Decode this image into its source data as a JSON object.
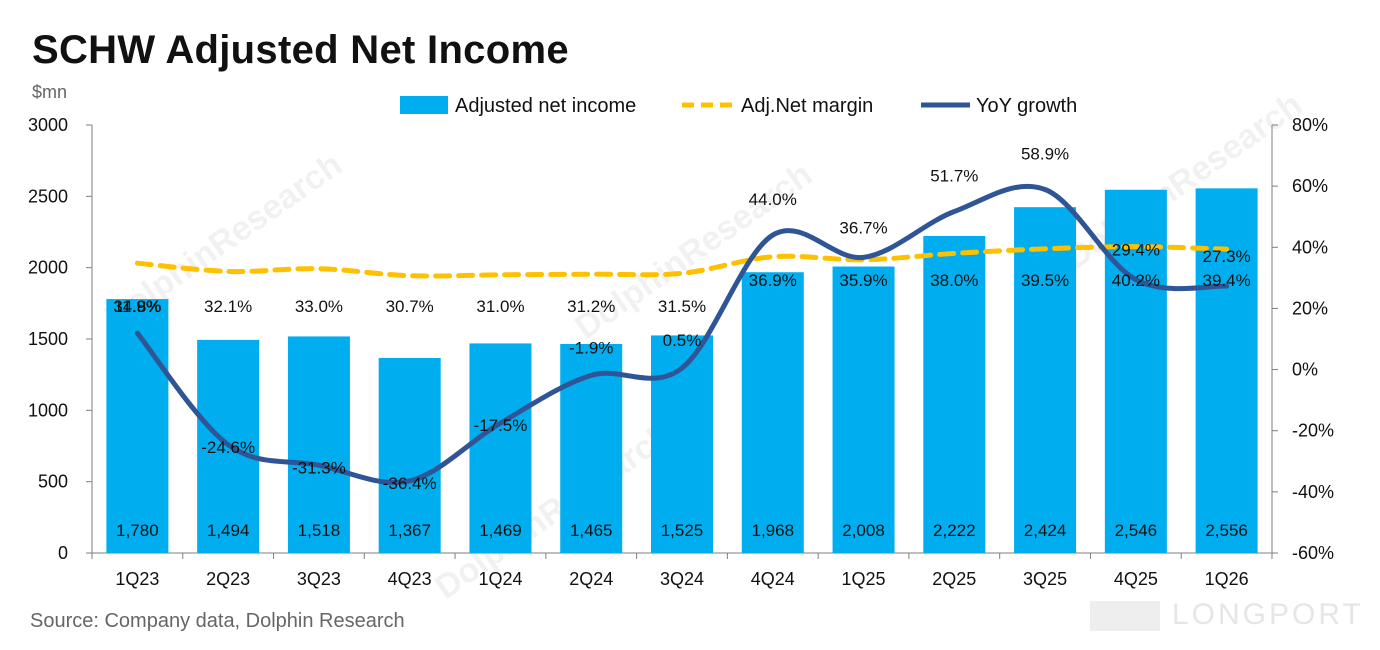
{
  "title": "SCHW Adjusted Net Income",
  "unit": "$mn",
  "source": "Source: Company data, Dolphin Research",
  "watermarks": {
    "research": "DolphinResearch",
    "brand": "LONGPORT"
  },
  "colors": {
    "bar": "#00aeef",
    "margin_line": "#ffc000",
    "growth_line": "#2f5597"
  },
  "chart_data": {
    "type": "bar",
    "categories": [
      "1Q23",
      "2Q23",
      "3Q23",
      "4Q23",
      "1Q24",
      "2Q24",
      "3Q24",
      "4Q24",
      "1Q25",
      "2Q25",
      "3Q25",
      "4Q25",
      "1Q26"
    ],
    "series": [
      {
        "name": "Adjusted net income",
        "type": "bar",
        "axis": "left",
        "values": [
          1780,
          1494,
          1518,
          1367,
          1469,
          1465,
          1525,
          1968,
          2008,
          2222,
          2424,
          2546,
          2556
        ],
        "labels": [
          "1,780",
          "1,494",
          "1,518",
          "1,367",
          "1,469",
          "1,465",
          "1,525",
          "1,968",
          "2,008",
          "2,222",
          "2,424",
          "2,546",
          "2,556"
        ]
      },
      {
        "name": "Adj.Net margin",
        "type": "line",
        "style": "dashed",
        "axis": "right",
        "values": [
          34.8,
          32.1,
          33.0,
          30.7,
          31.0,
          31.2,
          31.5,
          36.9,
          35.9,
          38.0,
          39.5,
          40.2,
          39.4
        ],
        "labels": [
          "34.8%",
          "32.1%",
          "33.0%",
          "30.7%",
          "31.0%",
          "31.2%",
          "31.5%",
          "36.9%",
          "35.9%",
          "38.0%",
          "39.5%",
          "40.2%",
          "39.4%"
        ]
      },
      {
        "name": "YoY growth",
        "type": "line",
        "axis": "right",
        "values": [
          11.9,
          -24.6,
          -31.3,
          -36.4,
          -17.5,
          -1.9,
          0.5,
          44.0,
          36.7,
          51.7,
          58.9,
          29.4,
          27.3
        ],
        "labels": [
          "11.9%",
          "-24.6%",
          "-31.3%",
          "-36.4%",
          "-17.5%",
          "-1.9%",
          "0.5%",
          "44.0%",
          "36.7%",
          "51.7%",
          "58.9%",
          "29.4%",
          "27.3%"
        ]
      }
    ],
    "y_left": {
      "range": [
        0,
        3000
      ],
      "ticks": [
        "0",
        "500",
        "1000",
        "1500",
        "2000",
        "2500",
        "3000"
      ]
    },
    "y_right": {
      "range": [
        -60,
        80
      ],
      "ticks": [
        "-60%",
        "-40%",
        "-20%",
        "0%",
        "20%",
        "40%",
        "60%",
        "80%"
      ]
    },
    "legend_position": "top",
    "grid": false
  }
}
